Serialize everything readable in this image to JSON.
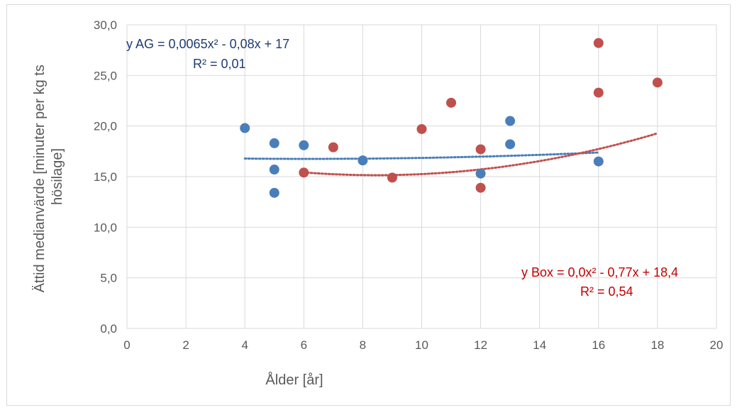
{
  "chart_data": {
    "type": "scatter",
    "xlabel": "Ålder [år]",
    "ylabel_lines": [
      "Ättid medianvärde [minuter per kg ts",
      "hösilage]"
    ],
    "xlim": [
      0,
      20
    ],
    "ylim": [
      0,
      30
    ],
    "x_ticks": [
      0,
      2,
      4,
      6,
      8,
      10,
      12,
      14,
      16,
      18,
      20
    ],
    "y_ticks": [
      0,
      5,
      10,
      15,
      20,
      25,
      30
    ],
    "x_tick_labels": [
      "0",
      "2",
      "4",
      "6",
      "8",
      "10",
      "12",
      "14",
      "16",
      "18",
      "20"
    ],
    "y_tick_labels": [
      "0,0",
      "5,0",
      "10,0",
      "15,0",
      "20,0",
      "25,0",
      "30,0"
    ],
    "grid": true,
    "series": [
      {
        "key": "ag",
        "color": "#4a7ebb",
        "points": [
          [
            4,
            19.8
          ],
          [
            5,
            18.3
          ],
          [
            5,
            15.7
          ],
          [
            5,
            13.4
          ],
          [
            6,
            18.1
          ],
          [
            8,
            16.6
          ],
          [
            12,
            15.3
          ],
          [
            13,
            20.5
          ],
          [
            13,
            18.2
          ],
          [
            16,
            16.5
          ]
        ],
        "trendline": {
          "type": "polynomial",
          "coefficients": [
            0.0065,
            -0.08,
            17
          ],
          "x_range": [
            4,
            16
          ],
          "color": "#4a7ebb"
        },
        "equation_lines": [
          "y AG = 0,0065x² - 0,08x + 17",
          "R² = 0,01"
        ]
      },
      {
        "key": "box",
        "color": "#c0504d",
        "points": [
          [
            6,
            15.4
          ],
          [
            7,
            17.9
          ],
          [
            9,
            14.9
          ],
          [
            10,
            19.7
          ],
          [
            11,
            22.3
          ],
          [
            12,
            17.7
          ],
          [
            12,
            13.9
          ],
          [
            16,
            28.2
          ],
          [
            16,
            23.3
          ],
          [
            18,
            24.3
          ]
        ],
        "trendline": {
          "type": "polynomial",
          "coefficients": [
            0.0455,
            -0.77,
            18.4
          ],
          "x_range": [
            6,
            18
          ],
          "color": "#c0504d"
        },
        "equation_lines": [
          "y Box = 0,0x² - 0,77x + 18,4",
          "R² = 0,54"
        ]
      }
    ]
  }
}
